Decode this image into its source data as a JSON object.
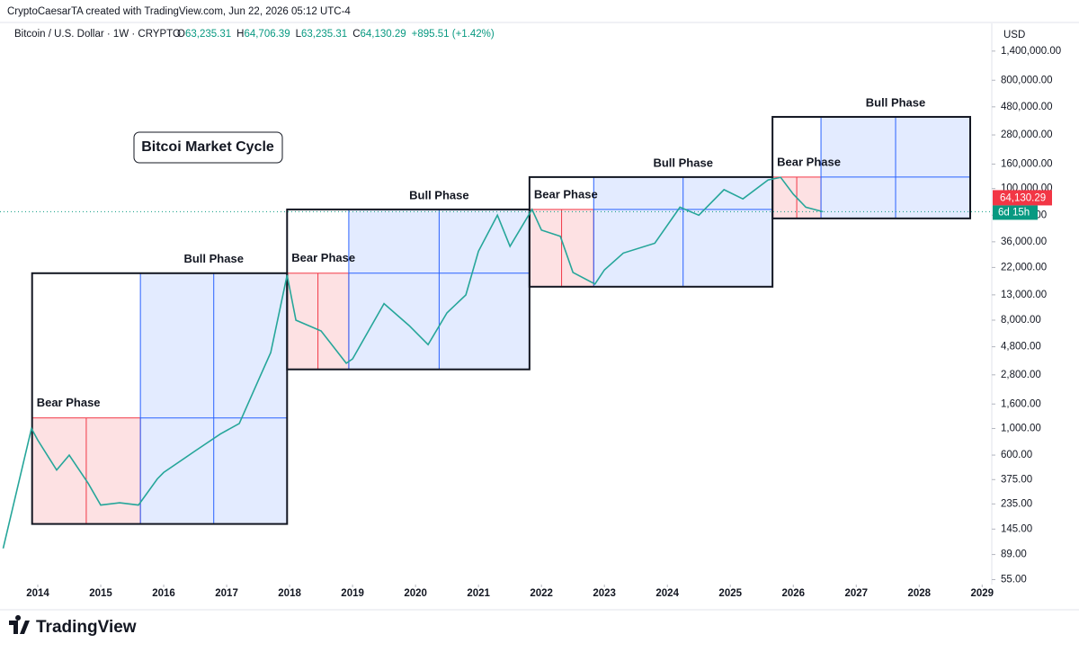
{
  "header": {
    "attribution": "CryptoCaesarTA created with TradingView.com, Jun 22, 2026 05:12 UTC-4",
    "symbol": "Bitcoin / U.S. Dollar · 1W · CRYPTO",
    "ohlc": [
      {
        "key": "O",
        "value": "63,235.31"
      },
      {
        "key": "H",
        "value": "64,706.39"
      },
      {
        "key": "L",
        "value": "63,235.31"
      },
      {
        "key": "C",
        "value": "64,130.29"
      }
    ],
    "change": "+895.51 (+1.42%)"
  },
  "chart_data": {
    "type": "line",
    "title": "Bitcoi Market Cycle",
    "currency": "USD",
    "log_scale": true,
    "grid": false,
    "color": "#26a69a",
    "x": [
      2013.45,
      2013.9,
      2014.0,
      2014.3,
      2014.5,
      2014.8,
      2015.0,
      2015.3,
      2015.6,
      2015.9,
      2016.0,
      2016.5,
      2016.9,
      2017.2,
      2017.5,
      2017.7,
      2017.96,
      2018.1,
      2018.5,
      2018.9,
      2019.0,
      2019.5,
      2019.9,
      2020.2,
      2020.5,
      2020.8,
      2021.0,
      2021.3,
      2021.5,
      2021.85,
      2022.0,
      2022.3,
      2022.5,
      2022.85,
      2023.0,
      2023.3,
      2023.8,
      2024.2,
      2024.5,
      2024.9,
      2025.2,
      2025.6,
      2025.8,
      2026.0,
      2026.2,
      2026.47
    ],
    "values": [
      100,
      1000,
      800,
      450,
      600,
      350,
      230,
      240,
      230,
      380,
      430,
      650,
      900,
      1100,
      2500,
      4300,
      19000,
      8000,
      6500,
      3500,
      3800,
      11000,
      7200,
      5000,
      9200,
      13000,
      30000,
      60000,
      33000,
      67000,
      45000,
      40000,
      20000,
      16000,
      21000,
      29000,
      35000,
      70000,
      60000,
      98000,
      82000,
      118000,
      124000,
      90000,
      70000,
      64130.29
    ],
    "last_price": {
      "value": 64130.29,
      "label": "64,130.29"
    },
    "countdown": "6d 15h",
    "xlim": [
      2013.4,
      2029.11
    ],
    "ylim": [
      50,
      1630000
    ],
    "xticks": [
      2014,
      2015,
      2016,
      2017,
      2018,
      2019,
      2020,
      2021,
      2022,
      2023,
      2024,
      2025,
      2026,
      2027,
      2028,
      2029
    ],
    "yticks": [
      {
        "value": 55,
        "label": "55.00"
      },
      {
        "value": 89,
        "label": "89.00"
      },
      {
        "value": 145,
        "label": "145.00"
      },
      {
        "value": 235,
        "label": "235.00"
      },
      {
        "value": 375,
        "label": "375.00"
      },
      {
        "value": 600,
        "label": "600.00"
      },
      {
        "value": 1000,
        "label": "1,000.00"
      },
      {
        "value": 1600,
        "label": "1,600.00"
      },
      {
        "value": 2800,
        "label": "2,800.00"
      },
      {
        "value": 4800,
        "label": "4,800.00"
      },
      {
        "value": 8000,
        "label": "8,000.00"
      },
      {
        "value": 13000,
        "label": "13,000.00"
      },
      {
        "value": 22000,
        "label": "22,000.00"
      },
      {
        "value": 36000,
        "label": "36,000.00"
      },
      {
        "value": 60000,
        "label": "60,000.00"
      },
      {
        "value": 100000,
        "label": "100,000.00"
      },
      {
        "value": 160000,
        "label": "160,000.00"
      },
      {
        "value": 280000,
        "label": "280,000.00"
      },
      {
        "value": 480000,
        "label": "480,000.00"
      },
      {
        "value": 800000,
        "label": "800,000.00"
      },
      {
        "value": 1400000,
        "label": "1,400,000.00"
      }
    ],
    "phases": [
      {
        "bear_label": "Bear Phase",
        "bull_label": "Bull Phase",
        "x": [
          2013.91,
          2015.63,
          2017.96
        ],
        "y": [
          160,
          1225,
          19700
        ]
      },
      {
        "bear_label": "Bear Phase",
        "bull_label": "Bull Phase",
        "x": [
          2017.96,
          2018.94,
          2021.81
        ],
        "y": [
          3110,
          19700,
          67000
        ]
      },
      {
        "bear_label": "Bear Phase",
        "bull_label": "Bull Phase",
        "x": [
          2021.81,
          2022.83,
          2025.67
        ],
        "y": [
          15200,
          67000,
          124700
        ]
      },
      {
        "bear_label": "Bear Phase",
        "bull_label": "Bull Phase",
        "x": [
          2025.67,
          2026.44,
          2028.81
        ],
        "y": [
          56400,
          124700,
          396000
        ]
      }
    ]
  },
  "footer": {
    "brand": "TradingView"
  }
}
